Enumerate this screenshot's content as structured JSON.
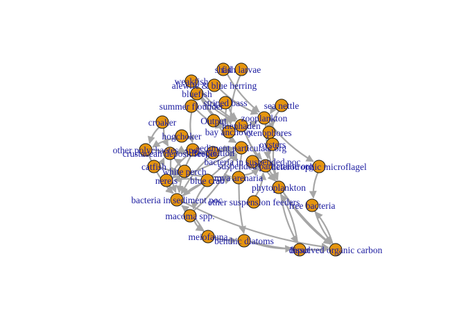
{
  "colors": {
    "background": "#ffffff",
    "node_fill": "#e5950f",
    "node_stroke": "#1a1a1a",
    "edge": "#a6a6a6",
    "label": "#1c1ca0"
  },
  "network": {
    "nodes": [
      {
        "id": "shad",
        "label": "shad"
      },
      {
        "id": "fish_larvae",
        "label": "fish larvae"
      },
      {
        "id": "weakfish",
        "label": "weakfish"
      },
      {
        "id": "alewife",
        "label": "alewife & blue herring"
      },
      {
        "id": "bluefish",
        "label": "bluefish"
      },
      {
        "id": "striped_bass",
        "label": "striped bass"
      },
      {
        "id": "summer_flounder",
        "label": "summer flounder"
      },
      {
        "id": "sea_nettle",
        "label": "sea nettle"
      },
      {
        "id": "zooplankton",
        "label": "zooplankton"
      },
      {
        "id": "croaker",
        "label": "croaker"
      },
      {
        "id": "output",
        "label": "Output"
      },
      {
        "id": "menhaden",
        "label": "menhaden"
      },
      {
        "id": "bay_anchovy",
        "label": "bay anchovy"
      },
      {
        "id": "ctenophores",
        "label": "ctenophores"
      },
      {
        "id": "hogchoker",
        "label": "hogchoker"
      },
      {
        "id": "oysters",
        "label": "oysters"
      },
      {
        "id": "other_polychaetes",
        "label": "other polychaetes"
      },
      {
        "id": "crustacean",
        "label": "crustacean deposit feeder"
      },
      {
        "id": "spot",
        "label": "spot"
      },
      {
        "id": "respiration",
        "label": "Respiration"
      },
      {
        "id": "sediment_poc",
        "label": "sediment particulate org"
      },
      {
        "id": "bacteria_susp",
        "label": "bacteria in suspended poc"
      },
      {
        "id": "suspended_poc",
        "label": "suspended particulate org"
      },
      {
        "id": "heterotrophic",
        "label": "heterotrophic microflagel"
      },
      {
        "id": "catfish",
        "label": "catfish"
      },
      {
        "id": "white_perch",
        "label": "white perch"
      },
      {
        "id": "nereis",
        "label": "nereis"
      },
      {
        "id": "blue_crab",
        "label": "blue crab"
      },
      {
        "id": "mya_arenaria",
        "label": "mya arenaria"
      },
      {
        "id": "phytoplankton",
        "label": "phytoplankton"
      },
      {
        "id": "bacteria_sed",
        "label": "bacteria in sediment poc"
      },
      {
        "id": "other_susp_feeders",
        "label": "other suspension feeders"
      },
      {
        "id": "free_bacteria",
        "label": "free bacteria"
      },
      {
        "id": "macoma",
        "label": "macoma spp."
      },
      {
        "id": "meiofauna",
        "label": "meiofauna"
      },
      {
        "id": "benthic_diatoms",
        "label": "benthic diatoms"
      },
      {
        "id": "input",
        "label": "Input"
      },
      {
        "id": "doc",
        "label": "dissolved organic carbon"
      }
    ],
    "edges": [
      [
        "fish_larvae",
        "bay_anchovy"
      ],
      [
        "shad",
        "zooplankton"
      ],
      [
        "weakfish",
        "menhaden"
      ],
      [
        "weakfish",
        "bay_anchovy"
      ],
      [
        "alewife",
        "zooplankton"
      ],
      [
        "bluefish",
        "menhaden"
      ],
      [
        "bluefish",
        "bay_anchovy"
      ],
      [
        "striped_bass",
        "menhaden"
      ],
      [
        "striped_bass",
        "bay_anchovy"
      ],
      [
        "summer_flounder",
        "bay_anchovy"
      ],
      [
        "summer_flounder",
        "spot"
      ],
      [
        "sea_nettle",
        "zooplankton"
      ],
      [
        "sea_nettle",
        "ctenophores"
      ],
      [
        "zooplankton",
        "phytoplankton"
      ],
      [
        "zooplankton",
        "heterotrophic"
      ],
      [
        "croaker",
        "crustacean"
      ],
      [
        "croaker",
        "other_polychaetes"
      ],
      [
        "menhaden",
        "phytoplankton"
      ],
      [
        "menhaden",
        "suspended_poc"
      ],
      [
        "bay_anchovy",
        "zooplankton"
      ],
      [
        "ctenophores",
        "zooplankton"
      ],
      [
        "hogchoker",
        "other_polychaetes"
      ],
      [
        "oysters",
        "suspended_poc"
      ],
      [
        "oysters",
        "phytoplankton"
      ],
      [
        "other_polychaetes",
        "sediment_poc"
      ],
      [
        "crustacean",
        "sediment_poc"
      ],
      [
        "spot",
        "crustacean"
      ],
      [
        "spot",
        "nereis"
      ],
      [
        "bacteria_susp",
        "suspended_poc"
      ],
      [
        "suspended_poc",
        "doc"
      ],
      [
        "heterotrophic",
        "free_bacteria"
      ],
      [
        "catfish",
        "crustacean"
      ],
      [
        "catfish",
        "mya_arenaria"
      ],
      [
        "white_perch",
        "crustacean"
      ],
      [
        "white_perch",
        "nereis"
      ],
      [
        "nereis",
        "sediment_poc"
      ],
      [
        "blue_crab",
        "mya_arenaria"
      ],
      [
        "blue_crab",
        "nereis"
      ],
      [
        "blue_crab",
        "macoma"
      ],
      [
        "mya_arenaria",
        "suspended_poc"
      ],
      [
        "phytoplankton",
        "input"
      ],
      [
        "phytoplankton",
        "doc"
      ],
      [
        "bacteria_sed",
        "sediment_poc"
      ],
      [
        "other_susp_feeders",
        "suspended_poc"
      ],
      [
        "free_bacteria",
        "doc"
      ],
      [
        "doc",
        "free_bacteria"
      ],
      [
        "macoma",
        "sediment_poc"
      ],
      [
        "meiofauna",
        "bacteria_sed"
      ],
      [
        "meiofauna",
        "benthic_diatoms"
      ],
      [
        "benthic_diatoms",
        "input"
      ],
      [
        "input",
        "phytoplankton"
      ],
      [
        "sediment_poc",
        "respiration"
      ],
      [
        "output",
        "sediment_poc"
      ],
      [
        "respiration",
        "bacteria_sed"
      ],
      [
        "bacteria_sed",
        "doc"
      ],
      [
        "benthic_diatoms",
        "doc"
      ],
      [
        "sediment_poc",
        "benthic_diatoms"
      ],
      [
        "macoma",
        "meiofauna"
      ],
      [
        "spot",
        "bacteria_sed"
      ],
      [
        "other_polychaetes",
        "bacteria_sed"
      ],
      [
        "crustacean",
        "bacteria_sed"
      ],
      [
        "nereis",
        "bacteria_sed"
      ],
      [
        "blue_crab",
        "bacteria_sed"
      ]
    ]
  }
}
